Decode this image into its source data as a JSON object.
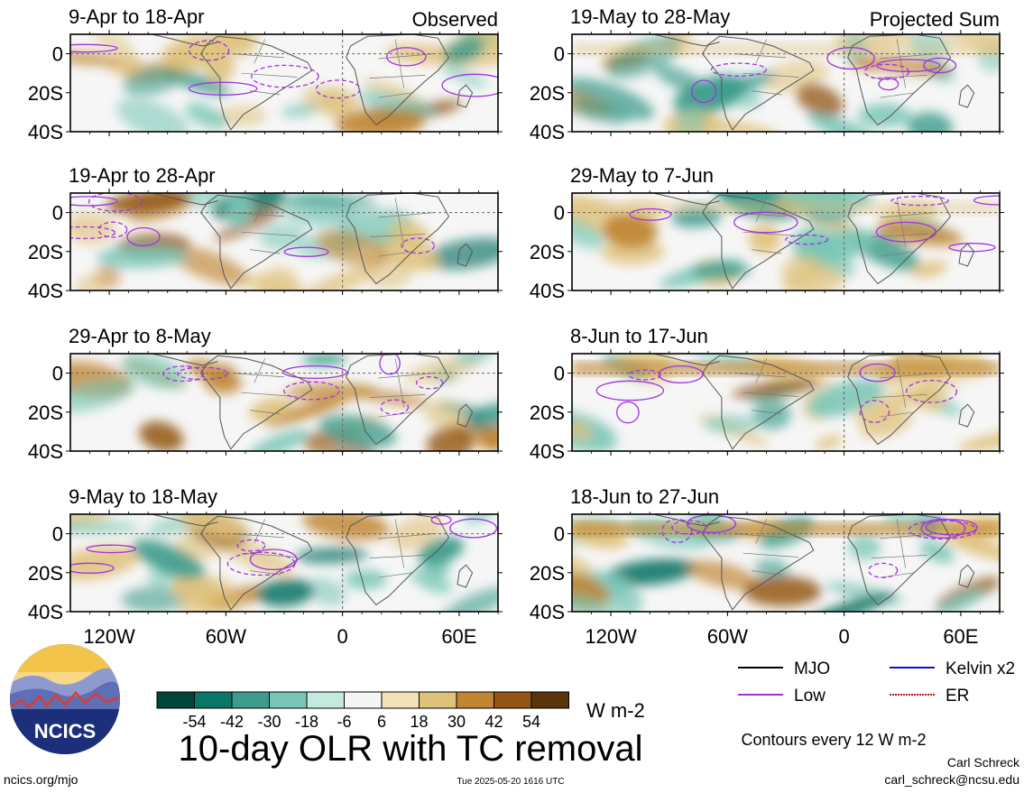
{
  "chart_data": {
    "type": "heatmap",
    "title": "10-day OLR with TC removal",
    "units": "W m-2",
    "x_tick_labels": [
      "120W",
      "60W",
      "0",
      "60E"
    ],
    "y_tick_labels": [
      "0",
      "20S",
      "40S"
    ],
    "x_ticks_lon": [
      -120,
      -60,
      0,
      60
    ],
    "y_ticks_lat": [
      0,
      -20,
      -40
    ],
    "lon_range": [
      -140,
      80
    ],
    "lat_range": [
      -40,
      10
    ],
    "columns": [
      {
        "label": "Observed",
        "panels": [
          {
            "period": "9-Apr to 18-Apr"
          },
          {
            "period": "19-Apr to 28-Apr"
          },
          {
            "period": "29-Apr to 8-May"
          },
          {
            "period": "9-May to 18-May"
          }
        ]
      },
      {
        "label": "Projected Sum",
        "panels": [
          {
            "period": "19-May to 28-May"
          },
          {
            "period": "29-May to 7-Jun"
          },
          {
            "period": "8-Jun to 17-Jun"
          },
          {
            "period": "18-Jun to 27-Jun"
          }
        ]
      }
    ],
    "colorbar": {
      "tick_labels": [
        "-54",
        "-42",
        "-30",
        "-18",
        "-6",
        "6",
        "18",
        "30",
        "42",
        "54"
      ],
      "colors": [
        "#01463a",
        "#0a7667",
        "#3e9c8c",
        "#79c6b6",
        "#c5e8df",
        "#f5f5f5",
        "#f3e1b8",
        "#dfc17a",
        "#c08633",
        "#925513",
        "#5a350c"
      ]
    },
    "legend": [
      {
        "label": "MJO",
        "color": "#000000",
        "style": "solid"
      },
      {
        "label": "Kelvin x2",
        "color": "#1010c8",
        "style": "solid"
      },
      {
        "label": "Low",
        "color": "#a033e0",
        "style": "solid"
      },
      {
        "label": "ER",
        "color": "#d01010",
        "style": "dotted"
      }
    ],
    "contour_note": "Contours every 12 W m-2"
  },
  "footer": {
    "logo_text": "NCICS",
    "url": "ncics.org/mjo",
    "timestamp": "Tue 2025-05-20 1616 UTC",
    "author": "Carl Schreck",
    "email": "carl_schreck@ncsu.edu"
  }
}
